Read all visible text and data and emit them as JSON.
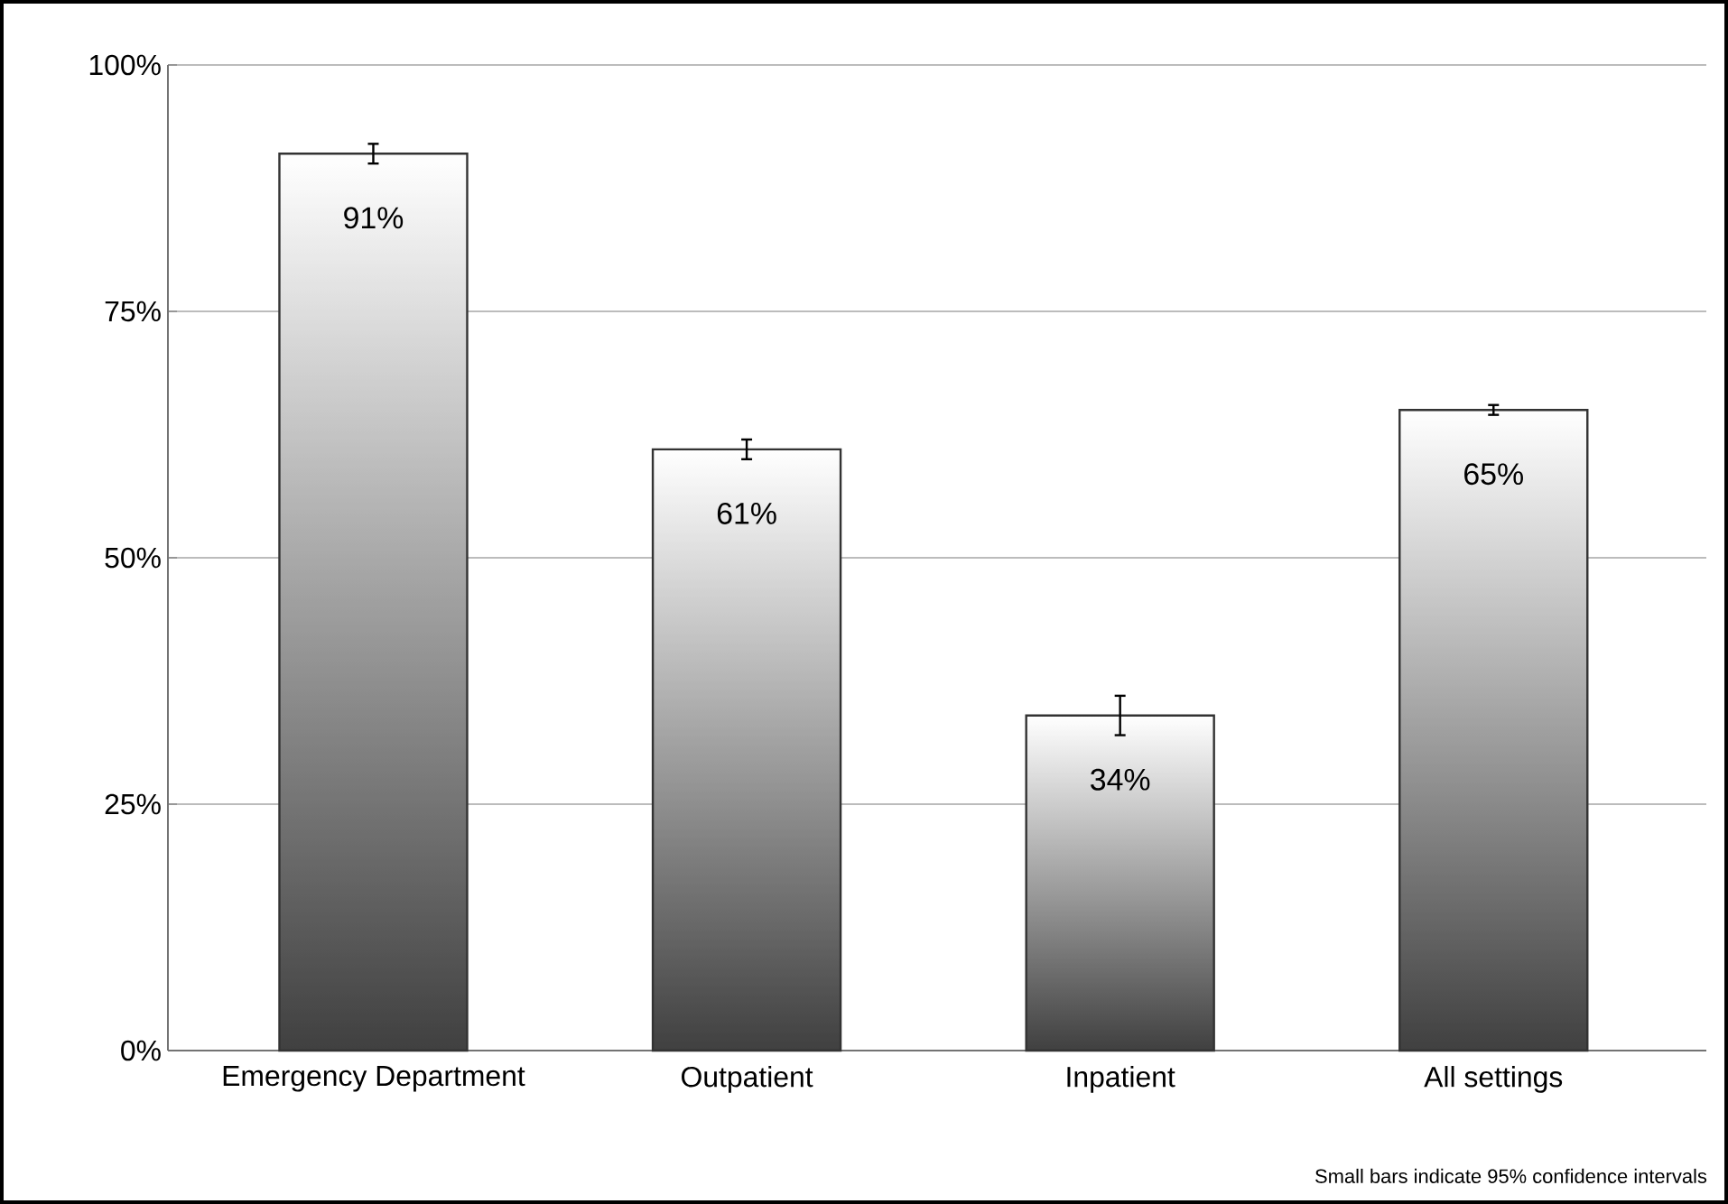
{
  "chart_data": {
    "type": "bar",
    "categories": [
      "Emergency Department",
      "Outpatient",
      "Inpatient",
      "All settings"
    ],
    "values": [
      91,
      61,
      34,
      65
    ],
    "errors": [
      1,
      1,
      2,
      0.5
    ],
    "value_labels": [
      "91%",
      "61%",
      "34%",
      "65%"
    ],
    "color": "#404040",
    "ylim": [
      0,
      100
    ],
    "yticks": [
      {
        "value": 0,
        "label": "0%"
      },
      {
        "value": 25,
        "label": "25%"
      },
      {
        "value": 50,
        "label": "50%"
      },
      {
        "value": 75,
        "label": "75%"
      },
      {
        "value": 100,
        "label": "100%"
      }
    ],
    "grid": "y",
    "annotations": [
      "Small bars indicate 95% confidence intervals"
    ]
  }
}
